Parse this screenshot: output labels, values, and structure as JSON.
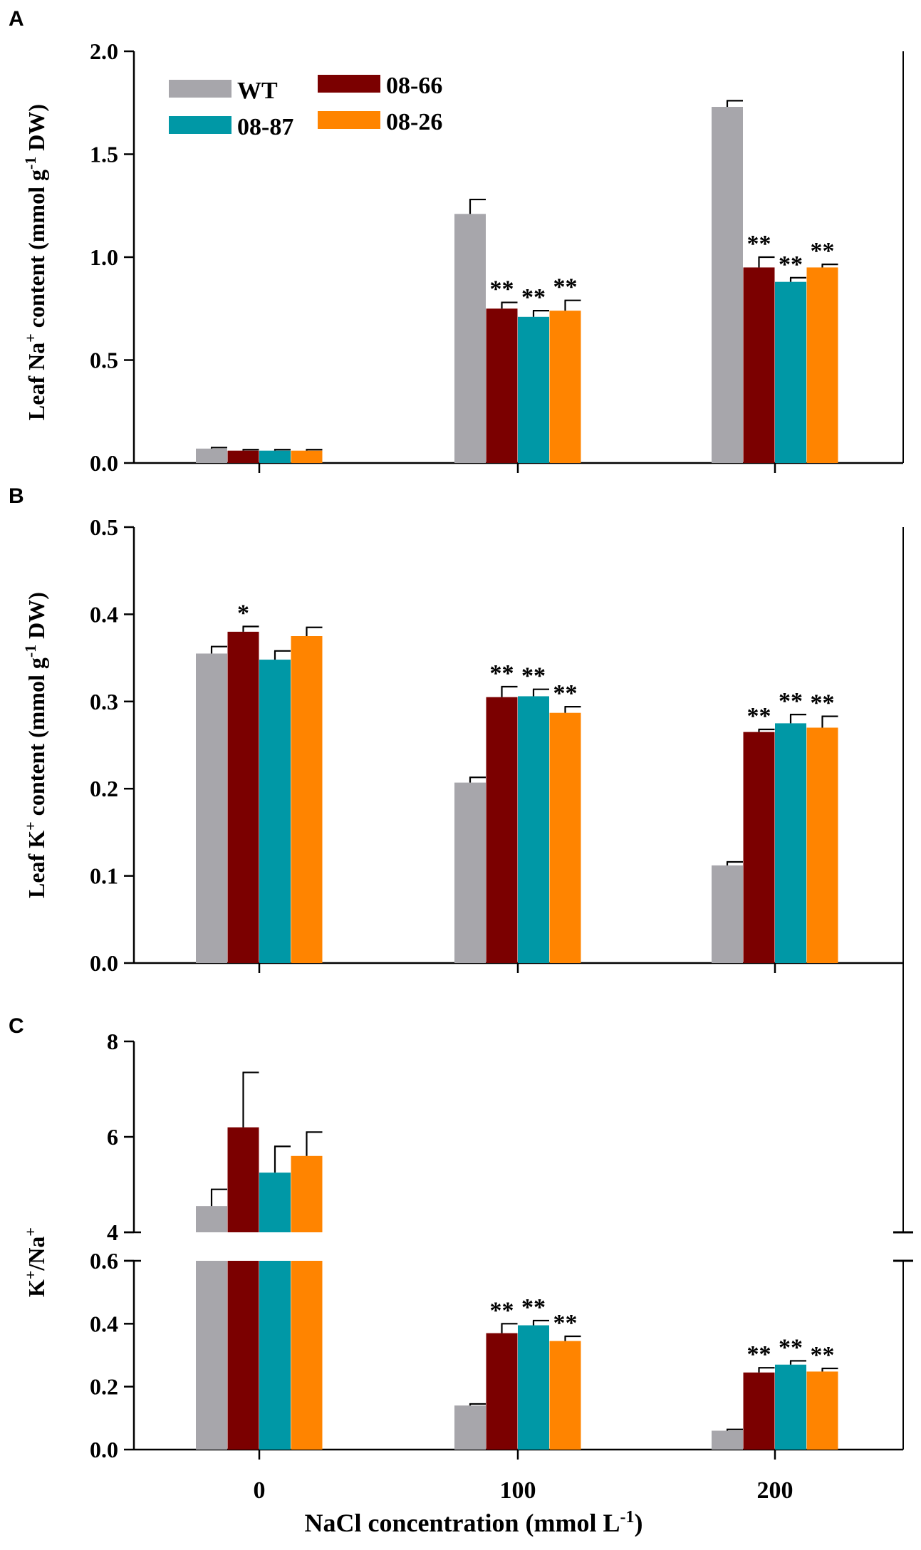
{
  "legend": {
    "labels": [
      "WT",
      "08-66",
      "08-87",
      "08-26"
    ]
  },
  "colors": {
    "WT": "#a7a6ab",
    "08-66": "#7b0000",
    "08-87": "#0098a6",
    "08-26": "#ff8400"
  },
  "chart_data": [
    {
      "panel": "A",
      "type": "bar",
      "title": "",
      "xlabel": "",
      "ylabel": "Leaf Na⁺ content (mmol g⁻¹ DW)",
      "ylim": [
        0,
        2.0
      ],
      "yticks": [
        "0.0",
        "0.5",
        "1.0",
        "1.5",
        "2.0"
      ],
      "categories": [
        "0",
        "100",
        "200"
      ],
      "series": [
        {
          "name": "WT",
          "values": [
            0.07,
            1.21,
            1.73
          ],
          "errors": [
            0.005,
            0.07,
            0.03
          ],
          "sig": [
            "",
            "",
            ""
          ]
        },
        {
          "name": "08-66",
          "values": [
            0.06,
            0.75,
            0.95
          ],
          "errors": [
            0.005,
            0.03,
            0.05
          ],
          "sig": [
            "",
            "**",
            "**"
          ]
        },
        {
          "name": "08-87",
          "values": [
            0.06,
            0.71,
            0.88
          ],
          "errors": [
            0.005,
            0.03,
            0.02
          ],
          "sig": [
            "",
            "**",
            "**"
          ]
        },
        {
          "name": "08-26",
          "values": [
            0.06,
            0.74,
            0.95
          ],
          "errors": [
            0.005,
            0.05,
            0.015
          ],
          "sig": [
            "",
            "**",
            "**"
          ]
        }
      ]
    },
    {
      "panel": "B",
      "type": "bar",
      "title": "",
      "xlabel": "",
      "ylabel": "Leaf K⁺ content (mmol g⁻¹ DW)",
      "ylim": [
        0,
        0.5
      ],
      "yticks": [
        "0.0",
        "0.1",
        "0.2",
        "0.3",
        "0.4",
        "0.5"
      ],
      "categories": [
        "0",
        "100",
        "200"
      ],
      "series": [
        {
          "name": "WT",
          "values": [
            0.355,
            0.207,
            0.112
          ],
          "errors": [
            0.008,
            0.006,
            0.004
          ],
          "sig": [
            "",
            "",
            ""
          ]
        },
        {
          "name": "08-66",
          "values": [
            0.38,
            0.305,
            0.265
          ],
          "errors": [
            0.006,
            0.012,
            0.003
          ],
          "sig": [
            "*",
            "**",
            "**"
          ]
        },
        {
          "name": "08-87",
          "values": [
            0.348,
            0.306,
            0.275
          ],
          "errors": [
            0.01,
            0.008,
            0.01
          ],
          "sig": [
            "",
            "**",
            "**"
          ]
        },
        {
          "name": "08-26",
          "values": [
            0.375,
            0.287,
            0.27
          ],
          "errors": [
            0.01,
            0.007,
            0.013
          ],
          "sig": [
            "",
            "**",
            "**"
          ]
        }
      ]
    },
    {
      "panel": "C",
      "type": "bar",
      "title": "",
      "xlabel": "NaCl concentration (mmol L⁻¹)",
      "ylabel": "K⁺/Na⁺",
      "y_segments": [
        {
          "range": [
            0,
            0.6
          ],
          "ticks": [
            "0.0",
            "0.2",
            "0.4",
            "0.6"
          ]
        },
        {
          "range": [
            4,
            8
          ],
          "ticks": [
            "4",
            "6",
            "8"
          ]
        }
      ],
      "categories": [
        "0",
        "100",
        "200"
      ],
      "series": [
        {
          "name": "WT",
          "values": [
            4.55,
            0.14,
            0.06
          ],
          "errors": [
            0.35,
            0.005,
            0.004
          ],
          "sig": [
            "",
            "",
            ""
          ]
        },
        {
          "name": "08-66",
          "values": [
            6.2,
            0.37,
            0.245
          ],
          "errors": [
            1.15,
            0.03,
            0.015
          ],
          "sig": [
            "",
            "**",
            "**"
          ]
        },
        {
          "name": "08-87",
          "values": [
            5.25,
            0.395,
            0.27
          ],
          "errors": [
            0.55,
            0.015,
            0.012
          ],
          "sig": [
            "",
            "**",
            "**"
          ]
        },
        {
          "name": "08-26",
          "values": [
            5.6,
            0.345,
            0.248
          ],
          "errors": [
            0.5,
            0.015,
            0.01
          ],
          "sig": [
            "",
            "**",
            "**"
          ]
        }
      ]
    }
  ]
}
